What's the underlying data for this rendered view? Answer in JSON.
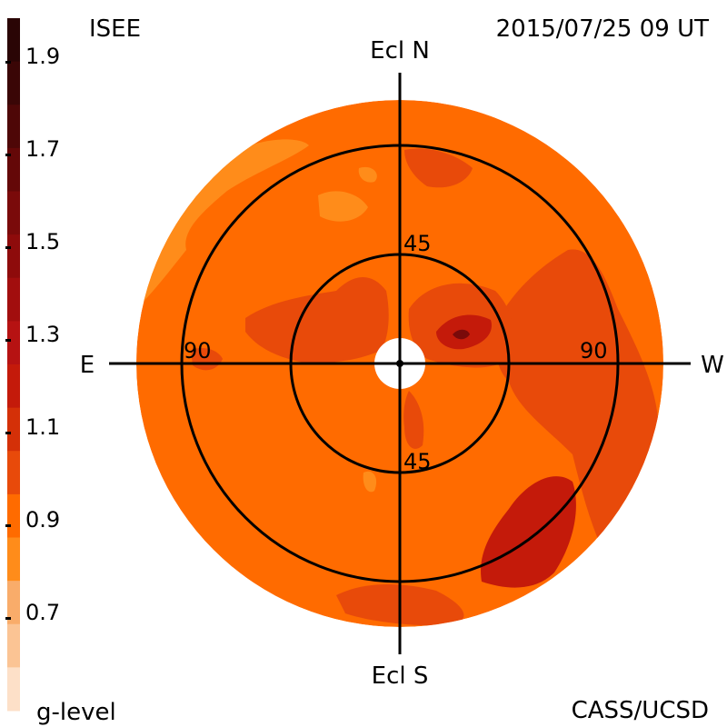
{
  "header": {
    "source": "ISEE",
    "timestamp": "2015/07/25 09 UT"
  },
  "footer": {
    "legend_title": "g-level",
    "credit": "CASS/UCSD"
  },
  "map": {
    "directions": {
      "north": "Ecl N",
      "south": "Ecl S",
      "east": "E",
      "west": "W"
    },
    "rings": [
      {
        "value_label": "45",
        "elongation_deg": 45
      },
      {
        "value_label": "90",
        "elongation_deg": 90
      }
    ],
    "colors": {
      "background": "#ff6b00",
      "enhanced": "#e84a0a",
      "strong": "#c41a0a",
      "peak": "#7a0a0a",
      "faint": "#ff8c1a"
    }
  },
  "colorbar": {
    "tick_labels": [
      "1.9",
      "1.7",
      "1.5",
      "1.3",
      "1.1",
      "0.9",
      "0.7"
    ],
    "bands": [
      "#2a0505",
      "#3a0606",
      "#4e0707",
      "#640808",
      "#7a0a0a",
      "#8e0b0b",
      "#a20e0e",
      "#b61212",
      "#c41a0a",
      "#d43008",
      "#e84a0a",
      "#ff6b00",
      "#ff8c1a",
      "#f9ac6a",
      "#fbc494",
      "#fde0c8"
    ]
  }
}
